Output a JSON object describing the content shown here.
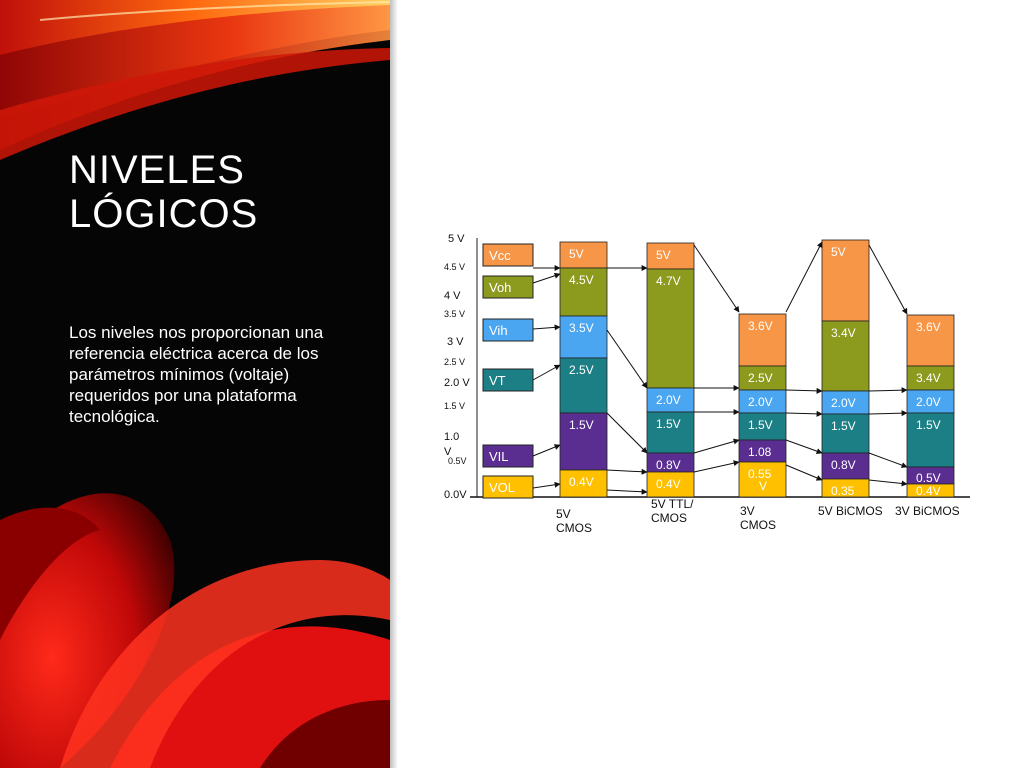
{
  "slide": {
    "title_line1": "NIVELES",
    "title_line2": "LÓGICOS",
    "body_text": "Los niveles nos proporcionan una referencia eléctrica acerca de los parámetros mínimos  (voltaje) requeridos por una plataforma tecnológica."
  },
  "diagram": {
    "axis_labels": [
      "5 V",
      "4.5 V",
      "4 V",
      "3.5 V",
      "3 V",
      "2.5 V",
      "2.0 V",
      "1.5 V",
      "1.0",
      "V",
      "0.5V",
      "0.0V"
    ],
    "legend": [
      {
        "label": "Vcc",
        "color": "#f79646"
      },
      {
        "label": "Voh",
        "color": "#8c9a1e"
      },
      {
        "label": "Vih",
        "color": "#4aa6f0"
      },
      {
        "label": "VT",
        "color": "#1c7f86"
      },
      {
        "label": "VIL",
        "color": "#5a2d91"
      },
      {
        "label": "VOL",
        "color": "#ffc000"
      }
    ],
    "columns": [
      {
        "name": [
          "5V",
          "CMOS"
        ],
        "segments": [
          {
            "label": "5V",
            "color": "#f79646"
          },
          {
            "label": "4.5V",
            "color": "#8c9a1e"
          },
          {
            "label": "3.5V",
            "color": "#4aa6f0"
          },
          {
            "label": "2.5V",
            "color": "#1c7f86"
          },
          {
            "label": "1.5V",
            "color": "#5a2d91"
          },
          {
            "label": "0.4V",
            "color": "#ffc000"
          }
        ]
      },
      {
        "name": [
          "5V TTL/",
          "CMOS"
        ],
        "segments": [
          {
            "label": "5V",
            "color": "#f79646"
          },
          {
            "label": "4.7V",
            "color": "#8c9a1e"
          },
          {
            "label": "2.0V",
            "color": "#4aa6f0"
          },
          {
            "label": "1.5V",
            "color": "#1c7f86"
          },
          {
            "label": "0.8V",
            "color": "#5a2d91"
          },
          {
            "label": "0.4V",
            "color": "#ffc000"
          }
        ]
      },
      {
        "name": [
          "3V",
          "CMOS"
        ],
        "segments": [
          {
            "label": "3.6V",
            "color": "#f79646"
          },
          {
            "label": "2.5V",
            "color": "#8c9a1e"
          },
          {
            "label": "2.0V",
            "color": "#4aa6f0"
          },
          {
            "label": "1.5V",
            "color": "#1c7f86"
          },
          {
            "label": "1.08",
            "color": "#5a2d91"
          },
          {
            "label": "0.55",
            "label2": "V",
            "color": "#ffc000"
          }
        ]
      },
      {
        "name": [
          "5V BiCMOS"
        ],
        "segments": [
          {
            "label": "5V",
            "color": "#f79646"
          },
          {
            "label": "3.4V",
            "color": "#8c9a1e"
          },
          {
            "label": "2.0V",
            "color": "#4aa6f0"
          },
          {
            "label": "1.5V",
            "color": "#1c7f86"
          },
          {
            "label": "0.8V",
            "color": "#5a2d91"
          },
          {
            "label": "0.35",
            "color": "#ffc000"
          }
        ]
      },
      {
        "name": [
          "3V BiCMOS"
        ],
        "segments": [
          {
            "label": "3.6V",
            "color": "#f79646"
          },
          {
            "label": "3.4V",
            "color": "#8c9a1e"
          },
          {
            "label": "2.0V",
            "color": "#4aa6f0"
          },
          {
            "label": "1.5V",
            "color": "#1c7f86"
          },
          {
            "label": "0.5V",
            "color": "#5a2d91"
          },
          {
            "label": "0.4V",
            "color": "#ffc000"
          }
        ]
      }
    ]
  }
}
